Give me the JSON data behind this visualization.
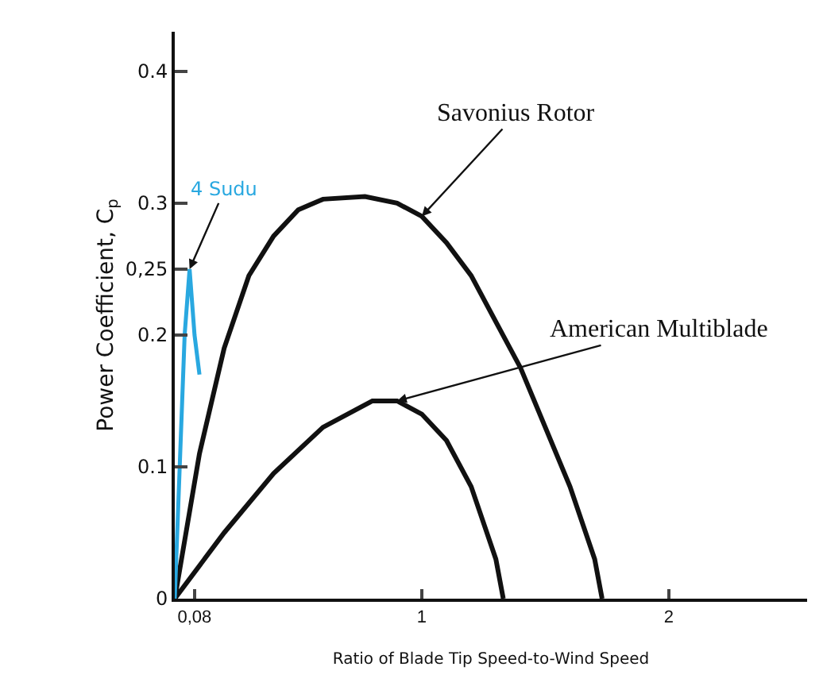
{
  "chart_data": {
    "type": "line",
    "xlabel": "Ratio of Blade Tip Speed-to-Wind Speed",
    "ylabel": "Power Coefficient, C$_{p}$",
    "xlim": [
      0,
      2.56
    ],
    "ylim": [
      0,
      0.43
    ],
    "xticks": [
      {
        "value": 0.08,
        "label": "0,08"
      },
      1,
      2
    ],
    "yticks": [
      0,
      {
        "value": 0.1,
        "label": "0.1"
      },
      {
        "value": 0.2,
        "label": "0.2"
      },
      {
        "value": 0.25,
        "label": "0,25"
      },
      {
        "value": 0.3,
        "label": "0.3"
      },
      {
        "value": 0.4,
        "label": "0.4"
      }
    ],
    "grid": false,
    "legend": false,
    "marker": "none",
    "line_style": "solid",
    "series": [
      {
        "name": "Savonius Rotor",
        "color": "#111111",
        "x": [
          0,
          0.1,
          0.2,
          0.3,
          0.4,
          0.5,
          0.6,
          0.77,
          0.9,
          1.0,
          1.1,
          1.2,
          1.3,
          1.4,
          1.5,
          1.6,
          1.7,
          1.73
        ],
        "values": [
          0,
          0.11,
          0.19,
          0.245,
          0.275,
          0.295,
          0.303,
          0.305,
          0.3,
          0.29,
          0.27,
          0.245,
          0.21,
          0.175,
          0.13,
          0.085,
          0.03,
          0
        ]
      },
      {
        "name": "American Multiblade",
        "color": "#111111",
        "x": [
          0,
          0.2,
          0.4,
          0.6,
          0.8,
          0.9,
          1.0,
          1.1,
          1.2,
          1.3,
          1.33
        ],
        "values": [
          0,
          0.05,
          0.095,
          0.13,
          0.15,
          0.15,
          0.14,
          0.12,
          0.085,
          0.03,
          0
        ]
      },
      {
        "name": "4 Sudu",
        "color": "#29a8e0",
        "x": [
          0,
          0.02,
          0.04,
          0.06,
          0.08,
          0.1
        ],
        "values": [
          0,
          0.1,
          0.2,
          0.25,
          0.2,
          0.17
        ]
      }
    ]
  }
}
